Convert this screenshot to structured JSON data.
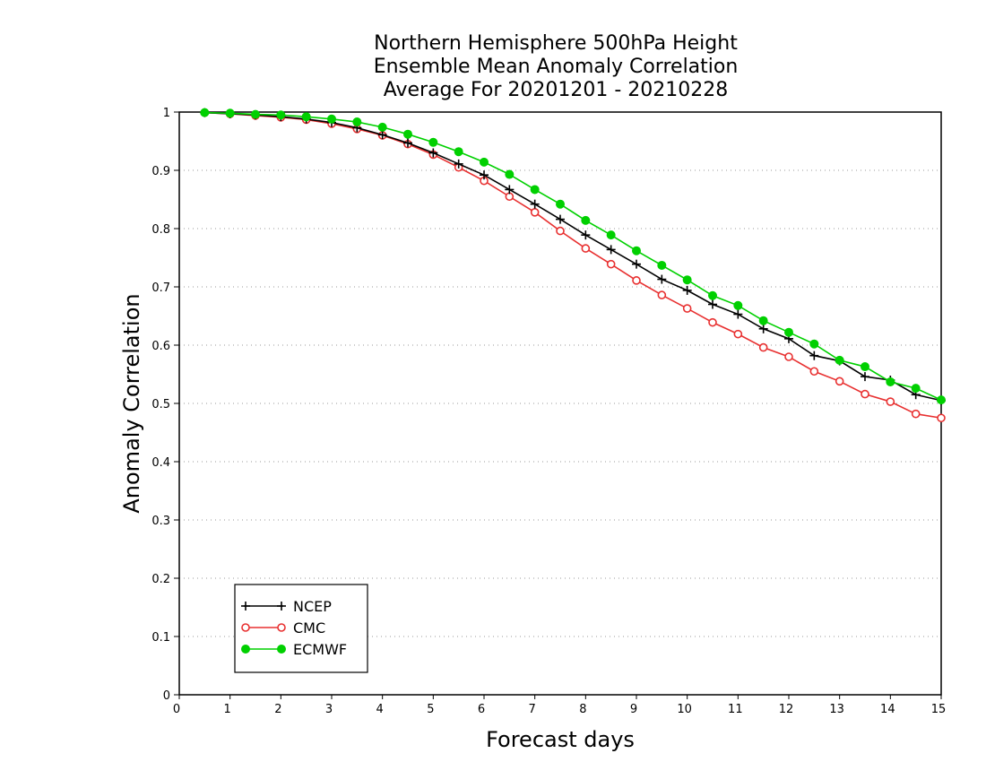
{
  "chart_data": {
    "type": "line",
    "title": [
      "Northern Hemisphere 500hPa Height",
      "Ensemble Mean Anomaly Correlation",
      "Average For 20201201 - 20210228"
    ],
    "xlabel": "Forecast days",
    "ylabel": "Anomaly Correlation",
    "xlim": [
      0,
      15
    ],
    "ylim": [
      0,
      1
    ],
    "xticks": [
      "0",
      "1",
      "2",
      "3",
      "4",
      "5",
      "6",
      "7",
      "8",
      "9",
      "10",
      "11",
      "12",
      "13",
      "14",
      "15"
    ],
    "yticks": [
      "0",
      "0.1",
      "0.2",
      "0.3",
      "0.4",
      "0.5",
      "0.6",
      "0.7",
      "0.8",
      "0.9",
      "1"
    ],
    "grid": "horizontal dotted",
    "legend_position": "bottom-left",
    "x": [
      0.5,
      1,
      1.5,
      2,
      2.5,
      3,
      3.5,
      4,
      4.5,
      5,
      5.5,
      6,
      6.5,
      7,
      7.5,
      8,
      8.5,
      9,
      9.5,
      10,
      10.5,
      11,
      11.5,
      12,
      12.5,
      13,
      13.5,
      14,
      14.5,
      15
    ],
    "series": [
      {
        "name": "NCEP",
        "color": "#000000",
        "marker": "plus",
        "values": [
          0.999,
          0.997,
          0.995,
          0.992,
          0.988,
          0.982,
          0.973,
          0.961,
          0.947,
          0.93,
          0.911,
          0.892,
          0.867,
          0.842,
          0.816,
          0.789,
          0.764,
          0.739,
          0.713,
          0.694,
          0.67,
          0.653,
          0.628,
          0.611,
          0.582,
          0.573,
          0.546,
          0.54,
          0.515,
          0.505
        ]
      },
      {
        "name": "CMC",
        "color": "#e83030",
        "marker": "open-circle",
        "values": [
          0.999,
          0.997,
          0.994,
          0.991,
          0.987,
          0.98,
          0.971,
          0.96,
          0.945,
          0.927,
          0.905,
          0.882,
          0.855,
          0.828,
          0.796,
          0.766,
          0.739,
          0.711,
          0.686,
          0.663,
          0.639,
          0.619,
          0.596,
          0.58,
          0.555,
          0.538,
          0.516,
          0.503,
          0.482,
          0.475
        ]
      },
      {
        "name": "ECMWF",
        "color": "#00d000",
        "marker": "filled-circle",
        "values": [
          0.999,
          0.998,
          0.996,
          0.995,
          0.992,
          0.988,
          0.983,
          0.974,
          0.962,
          0.948,
          0.932,
          0.914,
          0.893,
          0.867,
          0.842,
          0.814,
          0.789,
          0.762,
          0.737,
          0.712,
          0.685,
          0.668,
          0.642,
          0.622,
          0.602,
          0.574,
          0.563,
          0.537,
          0.526,
          0.506
        ]
      }
    ]
  }
}
